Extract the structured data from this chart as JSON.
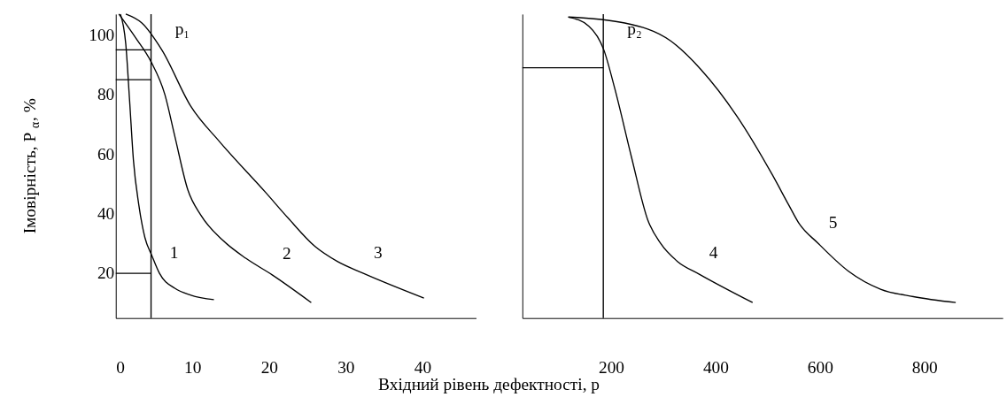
{
  "chart_data": [
    {
      "type": "line",
      "ylabel": "Імовірність,    P$_{α}$, %",
      "xlabel": "Вхідний    рівень    дефектності, p",
      "xlim": [
        0,
        47
      ],
      "xticks": [
        0,
        10,
        20,
        30,
        40
      ],
      "ylim": [
        5,
        107
      ],
      "yticks": [
        20,
        40,
        60,
        80,
        100
      ],
      "grid": false,
      "series": [
        {
          "color": "#000000",
          "x": [
            0.6,
            1.3,
            1.8,
            2.3,
            3.0,
            3.8,
            4.7,
            5.7,
            7.7,
            9.8,
            12.8
          ],
          "values": [
            107,
            97,
            78,
            58,
            43,
            32,
            26,
            20,
            15,
            12.7,
            11.2
          ]
        },
        {
          "color": "#000000",
          "x": [
            0.4,
            2.6,
            4.6,
            6.4,
            7.7,
            9.4,
            11.1,
            14,
            17,
            20.4,
            25.5
          ],
          "values": [
            107,
            99,
            91,
            80,
            66,
            48,
            39.5,
            31,
            25,
            19.5,
            10.2
          ]
        },
        {
          "color": "#000000",
          "x": [
            1.3,
            3.4,
            6,
            9.8,
            13.6,
            19.6,
            22.5,
            26,
            28.9,
            32.3,
            40.2
          ],
          "values": [
            107,
            104,
            95,
            76,
            64,
            47,
            38.5,
            29,
            24,
            20,
            11.7
          ]
        }
      ],
      "ref_lines": [
        {
          "axis": "x",
          "value": 4.6,
          "label": "p₁",
          "color": "#000000"
        },
        {
          "axis": "y",
          "value": 95,
          "color": "#000000"
        },
        {
          "axis": "y",
          "value": 85,
          "color": "#000000"
        },
        {
          "axis": "y",
          "value": 20,
          "color": "#000000"
        }
      ],
      "annotations": [
        {
          "text": "1",
          "x": 5.7,
          "y": 20
        },
        {
          "text": "2",
          "x": 20.4,
          "y": 19.5
        },
        {
          "text": "3",
          "x": 32.3,
          "y": 20
        }
      ]
    },
    {
      "type": "line",
      "xlim": [
        30,
        950
      ],
      "xticks": [
        200,
        400,
        600,
        800
      ],
      "ylim": [
        5,
        107
      ],
      "tick_labels": "x",
      "grid": false,
      "series": [
        {
          "color": "#000000",
          "x": [
            118,
            157,
            186,
            207,
            239,
            270,
            295,
            327,
            368,
            471
          ],
          "values": [
            106,
            103,
            95,
            82,
            59,
            38,
            30,
            24,
            19.8,
            10.2
          ]
        },
        {
          "color": "#000000",
          "x": [
            118,
            226,
            314,
            371,
            440,
            509,
            540,
            559,
            597,
            654,
            716,
            779,
            860
          ],
          "values": [
            106,
            104,
            98,
            88.6,
            73,
            53,
            43,
            37,
            30,
            20.8,
            14.7,
            12.2,
            10.2
          ]
        }
      ],
      "ref_lines": [
        {
          "axis": "x",
          "value": 185,
          "label": "p₂",
          "color": "#000000"
        },
        {
          "axis": "y",
          "value": 89,
          "color": "#000000"
        }
      ],
      "annotations": [
        {
          "text": "4",
          "x": 368,
          "y": 19.8
        },
        {
          "text": "5",
          "x": 597,
          "y": 30
        }
      ]
    }
  ]
}
